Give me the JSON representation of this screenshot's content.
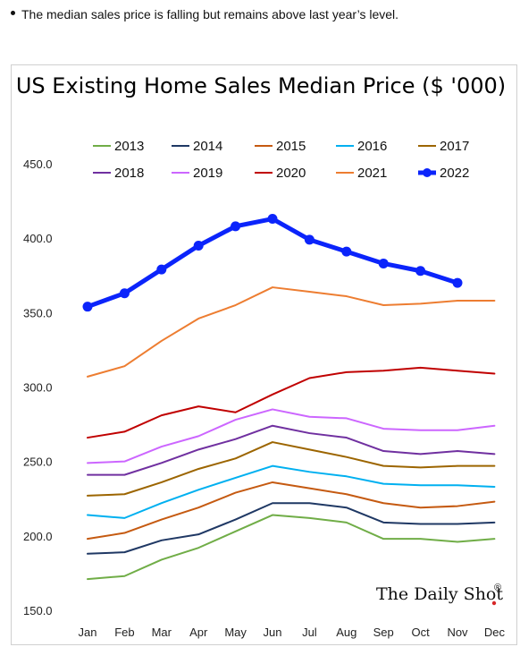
{
  "note": "The median sales price is falling but remains above last year’s level.",
  "brand": {
    "name": "The Daily Shot",
    "mark": "®",
    "mark_color": "#d62728"
  },
  "chart_data": {
    "type": "line",
    "title": "US Existing Home Sales Median Price ($ '000)",
    "xlabel": "",
    "ylabel": "",
    "categories": [
      "Jan",
      "Feb",
      "Mar",
      "Apr",
      "May",
      "Jun",
      "Jul",
      "Aug",
      "Sep",
      "Oct",
      "Nov",
      "Dec"
    ],
    "ylim": [
      150,
      450
    ],
    "yticks": [
      "150.0",
      "200.0",
      "250.0",
      "300.0",
      "350.0",
      "400.0",
      "450.0"
    ],
    "grid": false,
    "legend": "top",
    "series": [
      {
        "name": "2013",
        "color": "#70ad47",
        "width": 2,
        "markers": false,
        "values": [
          171,
          173,
          184,
          192,
          203,
          214,
          212,
          209,
          198,
          198,
          196,
          198
        ]
      },
      {
        "name": "2014",
        "color": "#1f3864",
        "width": 2,
        "markers": false,
        "values": [
          188,
          189,
          197,
          201,
          211,
          222,
          222,
          219,
          209,
          208,
          208,
          209
        ]
      },
      {
        "name": "2015",
        "color": "#c55a11",
        "width": 2,
        "markers": false,
        "values": [
          198,
          202,
          211,
          219,
          229,
          236,
          232,
          228,
          222,
          219,
          220,
          223
        ]
      },
      {
        "name": "2016",
        "color": "#00b0f0",
        "width": 2,
        "markers": false,
        "values": [
          214,
          212,
          222,
          231,
          239,
          247,
          243,
          240,
          235,
          234,
          234,
          233
        ]
      },
      {
        "name": "2017",
        "color": "#9c6500",
        "width": 2,
        "markers": false,
        "values": [
          227,
          228,
          236,
          245,
          252,
          263,
          258,
          253,
          247,
          246,
          247,
          247
        ]
      },
      {
        "name": "2018",
        "color": "#7030a0",
        "width": 2,
        "markers": false,
        "values": [
          241,
          241,
          249,
          258,
          265,
          274,
          269,
          266,
          257,
          255,
          257,
          255
        ]
      },
      {
        "name": "2019",
        "color": "#cc66ff",
        "width": 2,
        "markers": false,
        "values": [
          249,
          250,
          260,
          267,
          278,
          285,
          280,
          279,
          272,
          271,
          271,
          274
        ]
      },
      {
        "name": "2020",
        "color": "#c00000",
        "width": 2,
        "markers": false,
        "values": [
          266,
          270,
          281,
          287,
          283,
          295,
          306,
          310,
          311,
          313,
          311,
          309
        ]
      },
      {
        "name": "2021",
        "color": "#ed7d31",
        "width": 2,
        "markers": false,
        "values": [
          307,
          314,
          331,
          346,
          355,
          367,
          364,
          361,
          355,
          356,
          358,
          358
        ]
      },
      {
        "name": "2022",
        "color": "#0b24fb",
        "width": 5,
        "markers": true,
        "values": [
          354,
          363,
          379,
          395,
          408,
          413,
          399,
          391,
          383,
          378,
          370,
          null
        ]
      }
    ]
  }
}
